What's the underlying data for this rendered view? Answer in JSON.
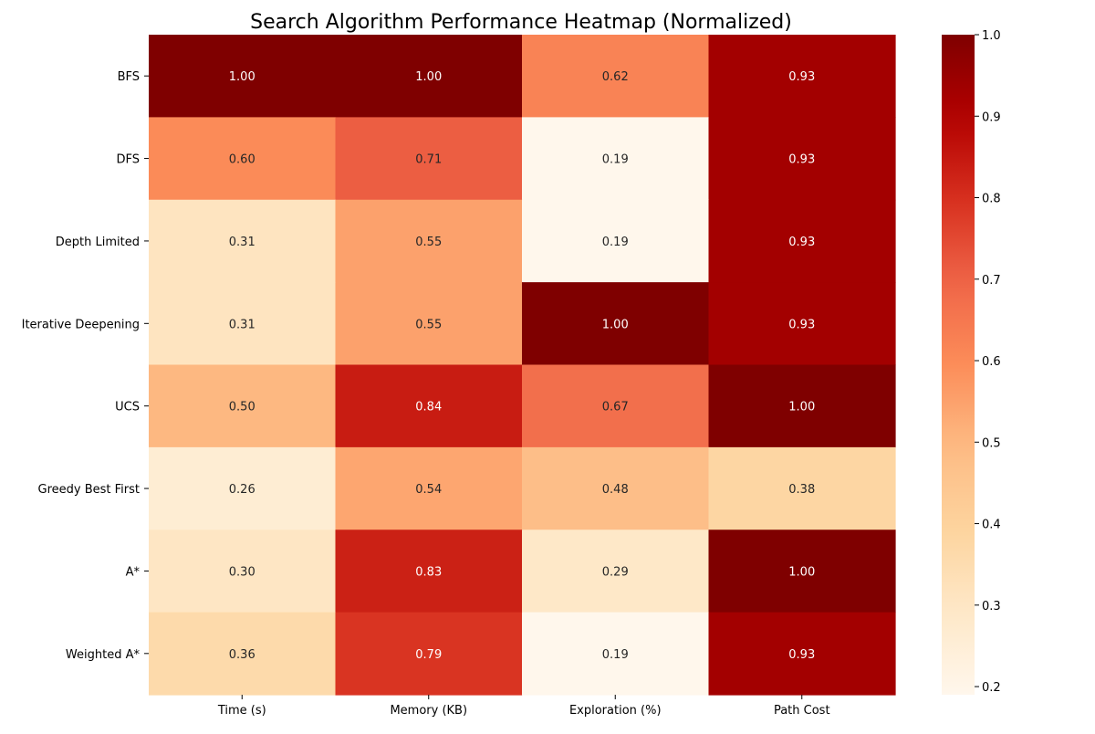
{
  "chart_data": {
    "type": "heatmap",
    "title": "Search Algorithm Performance Heatmap (Normalized)",
    "xlabel": "",
    "ylabel": "",
    "columns": [
      "Time (s)",
      "Memory (KB)",
      "Exploration (%)",
      "Path Cost"
    ],
    "rows": [
      "BFS",
      "DFS",
      "Depth Limited",
      "Iterative Deepening",
      "UCS",
      "Greedy Best First",
      "A*",
      "Weighted A*"
    ],
    "values": [
      [
        1.0,
        1.0,
        0.62,
        0.93
      ],
      [
        0.6,
        0.71,
        0.19,
        0.93
      ],
      [
        0.31,
        0.55,
        0.19,
        0.93
      ],
      [
        0.31,
        0.55,
        1.0,
        0.93
      ],
      [
        0.5,
        0.84,
        0.67,
        1.0
      ],
      [
        0.26,
        0.54,
        0.48,
        0.38
      ],
      [
        0.3,
        0.83,
        0.29,
        1.0
      ],
      [
        0.36,
        0.79,
        0.19,
        0.93
      ]
    ],
    "value_format": "2 decimals",
    "colormap": "OrRd",
    "colorbar": {
      "min": 0.19,
      "max": 1.0,
      "ticks": [
        0.2,
        0.3,
        0.4,
        0.5,
        0.6,
        0.7,
        0.8,
        0.9,
        1.0
      ],
      "tick_labels": [
        "0.2",
        "0.3",
        "0.4",
        "0.5",
        "0.6",
        "0.7",
        "0.8",
        "0.9",
        "1.0"
      ]
    },
    "grid": false,
    "legend": "colorbar-right"
  }
}
